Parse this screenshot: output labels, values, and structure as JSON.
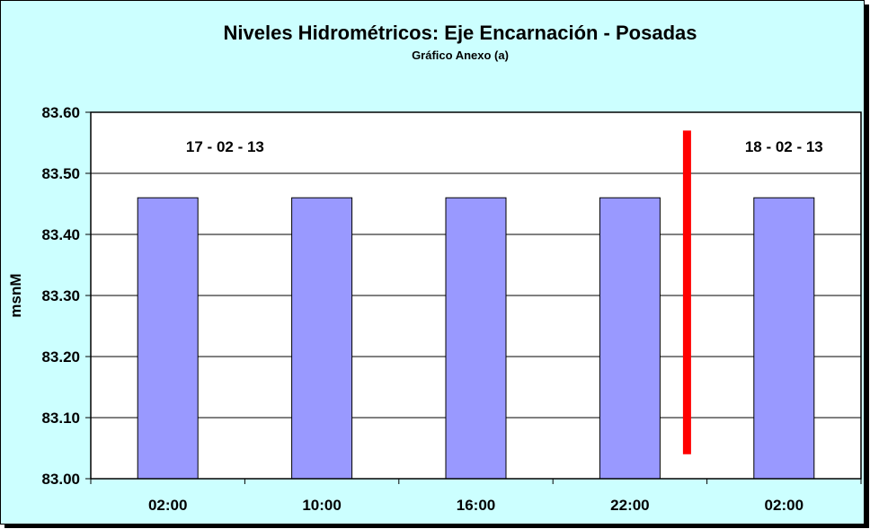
{
  "chart_data": {
    "type": "bar",
    "title": "Niveles Hidrométricos: Eje Encarnación - Posadas",
    "subtitle": "Gráfico Anexo (a)",
    "xlabel": "",
    "ylabel": "msnM",
    "categories": [
      "02:00",
      "10:00",
      "16:00",
      "22:00",
      "02:00"
    ],
    "values": [
      83.46,
      83.46,
      83.46,
      83.46,
      83.46
    ],
    "ylim": [
      83.0,
      83.6
    ],
    "yticks": [
      "83.00",
      "83.10",
      "83.20",
      "83.30",
      "83.40",
      "83.50",
      "83.60"
    ],
    "grid": true,
    "legend": "none",
    "annotations": [
      {
        "text": "17 - 02 - 13"
      },
      {
        "text": "18 - 02 - 13"
      }
    ],
    "day_separator": {
      "after_category_index": 3,
      "color": "#ff0000",
      "y_range": [
        83.04,
        83.57
      ]
    },
    "colors": {
      "background": "#ccffff",
      "plot_area": "#ffffff",
      "bar_fill": "#9999ff",
      "bar_stroke": "#000000",
      "separator": "#ff0000"
    }
  }
}
